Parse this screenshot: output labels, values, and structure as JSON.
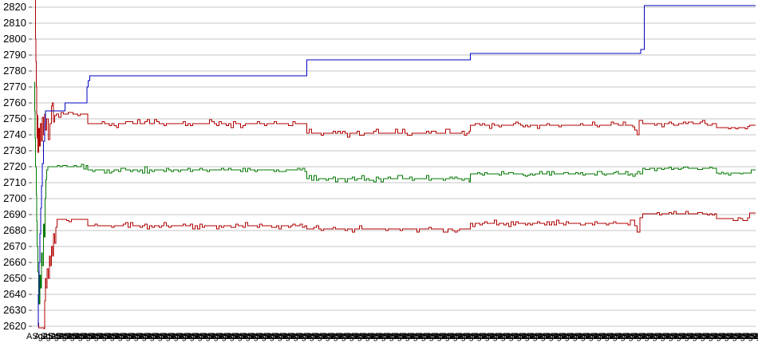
{
  "window": {
    "background": "#ffffff",
    "title": ""
  },
  "chart_data": {
    "type": "line",
    "title": "",
    "xlabel": "",
    "ylabel": "",
    "ylim": [
      2620,
      2820
    ],
    "y_tick_step": 10,
    "y_ticks": [
      2820,
      2810,
      2800,
      2790,
      2780,
      2770,
      2760,
      2750,
      2740,
      2730,
      2720,
      2710,
      2700,
      2690,
      2680,
      2670,
      2660,
      2650,
      2640,
      2630,
      2620
    ],
    "y_tick_labels": [
      "2820",
      "2810",
      "2800",
      "2790",
      "2780",
      "2770",
      "2760",
      "2750",
      "2740",
      "2730",
      "2720",
      "2710",
      "2700",
      "2690",
      "2680",
      "2670",
      "2660",
      "2650",
      "2640",
      "2630",
      "2620"
    ],
    "grid": {
      "horizontal": true,
      "vertical": false,
      "color": "#c6c6c6",
      "tick_color": "#555555"
    },
    "legend": null,
    "x_axis": {
      "labels_illegible_overlapping": true,
      "label_sample": "ASg25 09:15",
      "label_count": 91,
      "label_spacing_px": 10,
      "color": "#000000"
    },
    "note": "x values are percent of plot width (0-100); point format [x, price, jitter_amplitude]; lines render as step-after with occasional 1-2pt tick noise where jitter>0",
    "series": [
      {
        "name": "lower-red",
        "color": "#b00000",
        "points": [
          [
            0.9,
            2622,
            0
          ],
          [
            0.95,
            2619,
            0
          ],
          [
            1.65,
            2618.5,
            0
          ],
          [
            1.75,
            2636,
            0
          ],
          [
            1.85,
            2650,
            0
          ],
          [
            1.95,
            2644,
            0
          ],
          [
            2.1,
            2656,
            0
          ],
          [
            2.25,
            2650,
            0
          ],
          [
            2.4,
            2664,
            0
          ],
          [
            2.55,
            2658,
            0
          ],
          [
            2.7,
            2670,
            0
          ],
          [
            2.85,
            2664,
            0
          ],
          [
            3.0,
            2678,
            0
          ],
          [
            3.15,
            2672,
            0
          ],
          [
            3.3,
            2682,
            0
          ],
          [
            3.5,
            2687,
            0.8
          ],
          [
            7.7,
            2683,
            1
          ],
          [
            38.0,
            2681,
            1
          ],
          [
            60.6,
            2684.5,
            1
          ],
          [
            83.3,
            2683,
            0
          ],
          [
            83.6,
            2679,
            0
          ],
          [
            84.0,
            2688,
            0
          ],
          [
            84.4,
            2690.5,
            0.8
          ],
          [
            94.6,
            2687.5,
            0.6
          ],
          [
            99.2,
            2691,
            0
          ],
          [
            100,
            2691,
            0
          ]
        ]
      },
      {
        "name": "green-mid",
        "color": "#007800",
        "points": [
          [
            0.35,
            2773,
            0
          ],
          [
            0.4,
            2755,
            0
          ],
          [
            0.45,
            2738,
            0
          ],
          [
            0.52,
            2720,
            0
          ],
          [
            0.58,
            2702,
            0
          ],
          [
            0.65,
            2686,
            0
          ],
          [
            0.73,
            2670,
            0
          ],
          [
            0.82,
            2654,
            0
          ],
          [
            0.92,
            2641,
            0
          ],
          [
            1.0,
            2634,
            0
          ],
          [
            1.1,
            2652,
            0
          ],
          [
            1.2,
            2644,
            0
          ],
          [
            1.32,
            2666,
            0
          ],
          [
            1.45,
            2658,
            0
          ],
          [
            1.58,
            2684,
            0
          ],
          [
            1.7,
            2676,
            0
          ],
          [
            1.82,
            2700,
            0
          ],
          [
            1.93,
            2712,
            0
          ],
          [
            2.05,
            2718,
            0
          ],
          [
            2.2,
            2720,
            0.8
          ],
          [
            7.7,
            2718,
            1
          ],
          [
            38.0,
            2712.5,
            1
          ],
          [
            60.6,
            2715.5,
            0.8
          ],
          [
            84.4,
            2719,
            0.8
          ],
          [
            94.6,
            2716,
            0.6
          ],
          [
            99.4,
            2718,
            0
          ],
          [
            100,
            2718,
            0
          ]
        ]
      },
      {
        "name": "upper-red",
        "color": "#b00000",
        "points": [
          [
            0.45,
            2825,
            0
          ],
          [
            0.5,
            2800,
            0
          ],
          [
            0.55,
            2786,
            0
          ],
          [
            0.6,
            2770,
            0
          ],
          [
            0.65,
            2753,
            0
          ],
          [
            0.72,
            2738,
            0
          ],
          [
            0.78,
            2752,
            0
          ],
          [
            0.85,
            2729,
            0
          ],
          [
            0.95,
            2744,
            0
          ],
          [
            1.05,
            2733,
            0
          ],
          [
            1.15,
            2747,
            0
          ],
          [
            1.3,
            2736,
            0
          ],
          [
            1.45,
            2751,
            0
          ],
          [
            1.6,
            2740,
            0
          ],
          [
            1.75,
            2753,
            0
          ],
          [
            1.9,
            2743,
            0
          ],
          [
            2.05,
            2750,
            0
          ],
          [
            2.25,
            2737,
            0
          ],
          [
            2.5,
            2747,
            0
          ],
          [
            2.7,
            2758,
            0
          ],
          [
            2.8,
            2760,
            0
          ],
          [
            2.95,
            2748,
            0
          ],
          [
            3.15,
            2752,
            0
          ],
          [
            3.35,
            2753,
            1
          ],
          [
            7.7,
            2747,
            1.2
          ],
          [
            38.0,
            2741,
            1.2
          ],
          [
            60.6,
            2746,
            1
          ],
          [
            83.3,
            2743,
            0
          ],
          [
            83.6,
            2740,
            0
          ],
          [
            83.9,
            2749,
            0
          ],
          [
            84.4,
            2747,
            1
          ],
          [
            94.6,
            2744.5,
            0.8
          ],
          [
            99.2,
            2746,
            0.5
          ],
          [
            100,
            2746,
            0
          ]
        ]
      },
      {
        "name": "upper-blue",
        "color": "#0000c0",
        "points": [
          [
            0.8,
            2620,
            0
          ],
          [
            0.9,
            2640,
            0
          ],
          [
            1.0,
            2660,
            0
          ],
          [
            1.1,
            2678,
            0
          ],
          [
            1.2,
            2694,
            0
          ],
          [
            1.3,
            2708,
            0
          ],
          [
            1.45,
            2722,
            0
          ],
          [
            1.6,
            2736,
            0
          ],
          [
            1.75,
            2747,
            0
          ],
          [
            1.9,
            2755,
            0
          ],
          [
            4.6,
            2760,
            0
          ],
          [
            7.6,
            2770,
            0
          ],
          [
            7.8,
            2774,
            0
          ],
          [
            8.0,
            2777,
            0
          ],
          [
            38.0,
            2787,
            0
          ],
          [
            60.6,
            2791,
            0
          ],
          [
            84.1,
            2793.5,
            0
          ],
          [
            84.6,
            2821,
            0
          ],
          [
            100,
            2821,
            0
          ]
        ]
      }
    ]
  }
}
